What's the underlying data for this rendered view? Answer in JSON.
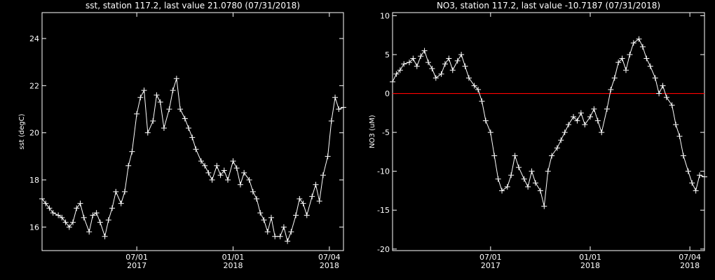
{
  "chart_data": [
    {
      "type": "line",
      "title": "sst, station 117.2, last value 21.0780 (07/31/2018)",
      "y_label": "sst (degC)",
      "color": "#ffffff",
      "marker": "plus",
      "xlim": [
        "2017-01-01",
        "2018-07-31"
      ],
      "xticks": [
        {
          "value": "2017-07-01",
          "label": [
            "07/01",
            "2017"
          ]
        },
        {
          "value": "2018-01-01",
          "label": [
            "01/01",
            "2018"
          ]
        },
        {
          "value": "2018-07-04",
          "label": [
            "07/04",
            "2018"
          ]
        }
      ],
      "ylim": [
        15.0,
        25.1
      ],
      "yticks": [
        16,
        18,
        20,
        22,
        24
      ],
      "x": [
        "2017-01-01",
        "2017-01-08",
        "2017-01-15",
        "2017-01-22",
        "2017-02-01",
        "2017-02-08",
        "2017-02-15",
        "2017-02-22",
        "2017-03-01",
        "2017-03-08",
        "2017-03-15",
        "2017-03-22",
        "2017-04-01",
        "2017-04-08",
        "2017-04-15",
        "2017-04-22",
        "2017-05-01",
        "2017-05-08",
        "2017-05-15",
        "2017-05-22",
        "2017-06-01",
        "2017-06-08",
        "2017-06-15",
        "2017-06-22",
        "2017-07-01",
        "2017-07-08",
        "2017-07-15",
        "2017-07-22",
        "2017-08-01",
        "2017-08-08",
        "2017-08-15",
        "2017-08-22",
        "2017-09-01",
        "2017-09-08",
        "2017-09-15",
        "2017-09-22",
        "2017-10-01",
        "2017-10-08",
        "2017-10-15",
        "2017-10-22",
        "2017-11-01",
        "2017-11-08",
        "2017-11-15",
        "2017-11-22",
        "2017-12-01",
        "2017-12-08",
        "2017-12-15",
        "2017-12-22",
        "2018-01-01",
        "2018-01-08",
        "2018-01-15",
        "2018-01-22",
        "2018-02-01",
        "2018-02-08",
        "2018-02-15",
        "2018-02-22",
        "2018-03-01",
        "2018-03-08",
        "2018-03-15",
        "2018-03-22",
        "2018-04-01",
        "2018-04-08",
        "2018-04-15",
        "2018-04-22",
        "2018-05-01",
        "2018-05-08",
        "2018-05-15",
        "2018-05-22",
        "2018-06-01",
        "2018-06-08",
        "2018-06-15",
        "2018-06-22",
        "2018-07-01",
        "2018-07-08",
        "2018-07-15",
        "2018-07-22",
        "2018-07-31"
      ],
      "values": [
        17.2,
        17.0,
        16.8,
        16.6,
        16.5,
        16.4,
        16.2,
        16.0,
        16.2,
        16.8,
        17.0,
        16.4,
        15.8,
        16.5,
        16.6,
        16.2,
        15.6,
        16.3,
        16.8,
        17.5,
        17.0,
        17.5,
        18.6,
        19.2,
        20.8,
        21.5,
        21.8,
        20.0,
        20.5,
        21.6,
        21.3,
        20.2,
        21.0,
        21.8,
        22.3,
        21.0,
        20.6,
        20.2,
        19.8,
        19.3,
        18.8,
        18.6,
        18.3,
        18.0,
        18.6,
        18.2,
        18.4,
        18.0,
        18.8,
        18.5,
        17.8,
        18.3,
        18.0,
        17.5,
        17.2,
        16.6,
        16.3,
        15.8,
        16.4,
        15.6,
        15.6,
        16.0,
        15.4,
        15.8,
        16.5,
        17.2,
        17.0,
        16.5,
        17.3,
        17.8,
        17.1,
        18.2,
        19.0,
        20.5,
        21.5,
        21.0,
        21.078
      ]
    },
    {
      "type": "line",
      "title": "NO3, station 117.2, last value -10.7187 (07/31/2018)",
      "y_label": "NO3 (uM)",
      "color": "#ffffff",
      "marker": "plus",
      "hline": 0,
      "hline_color": "#ff0000",
      "xlim": [
        "2017-01-01",
        "2018-07-31"
      ],
      "xticks": [
        {
          "value": "2017-07-01",
          "label": [
            "07/01",
            "2017"
          ]
        },
        {
          "value": "2018-01-01",
          "label": [
            "01/01",
            "2018"
          ]
        },
        {
          "value": "2018-07-04",
          "label": [
            "07/04",
            "2018"
          ]
        }
      ],
      "ylim": [
        -20.2,
        10.4
      ],
      "yticks": [
        -20,
        -15,
        -10,
        -5,
        0,
        5,
        10
      ],
      "x": [
        "2017-01-01",
        "2017-01-08",
        "2017-01-15",
        "2017-01-22",
        "2017-02-01",
        "2017-02-08",
        "2017-02-15",
        "2017-02-22",
        "2017-03-01",
        "2017-03-08",
        "2017-03-15",
        "2017-03-22",
        "2017-04-01",
        "2017-04-08",
        "2017-04-15",
        "2017-04-22",
        "2017-05-01",
        "2017-05-08",
        "2017-05-15",
        "2017-05-22",
        "2017-06-01",
        "2017-06-08",
        "2017-06-15",
        "2017-06-22",
        "2017-07-01",
        "2017-07-08",
        "2017-07-15",
        "2017-07-22",
        "2017-08-01",
        "2017-08-08",
        "2017-08-15",
        "2017-08-22",
        "2017-09-01",
        "2017-09-08",
        "2017-09-15",
        "2017-09-22",
        "2017-10-01",
        "2017-10-08",
        "2017-10-15",
        "2017-10-22",
        "2017-11-01",
        "2017-11-08",
        "2017-11-15",
        "2017-11-22",
        "2017-12-01",
        "2017-12-08",
        "2017-12-15",
        "2017-12-22",
        "2018-01-01",
        "2018-01-08",
        "2018-01-15",
        "2018-01-22",
        "2018-02-01",
        "2018-02-08",
        "2018-02-15",
        "2018-02-22",
        "2018-03-01",
        "2018-03-08",
        "2018-03-15",
        "2018-03-22",
        "2018-04-01",
        "2018-04-08",
        "2018-04-15",
        "2018-04-22",
        "2018-05-01",
        "2018-05-08",
        "2018-05-15",
        "2018-05-22",
        "2018-06-01",
        "2018-06-08",
        "2018-06-15",
        "2018-06-22",
        "2018-07-01",
        "2018-07-08",
        "2018-07-15",
        "2018-07-22",
        "2018-07-31"
      ],
      "values": [
        1.5,
        2.5,
        3.0,
        3.8,
        4.0,
        4.5,
        3.5,
        4.8,
        5.5,
        4.0,
        3.2,
        2.0,
        2.5,
        3.8,
        4.5,
        3.0,
        4.2,
        5.0,
        3.5,
        2.0,
        1.0,
        0.5,
        -1.0,
        -3.5,
        -5.0,
        -8.0,
        -11.0,
        -12.5,
        -12.0,
        -10.5,
        -8.0,
        -9.5,
        -11.0,
        -12.0,
        -10.0,
        -11.5,
        -12.5,
        -14.5,
        -10.0,
        -8.0,
        -7.0,
        -6.0,
        -5.0,
        -4.0,
        -3.0,
        -3.5,
        -2.5,
        -4.0,
        -3.0,
        -2.0,
        -3.5,
        -5.0,
        -2.0,
        0.5,
        2.0,
        4.0,
        4.5,
        3.0,
        5.0,
        6.5,
        7.0,
        6.0,
        4.5,
        3.5,
        2.0,
        0.0,
        1.0,
        -0.5,
        -1.5,
        -4.0,
        -5.5,
        -8.0,
        -10.0,
        -11.5,
        -12.5,
        -10.5,
        -10.7187
      ]
    }
  ]
}
